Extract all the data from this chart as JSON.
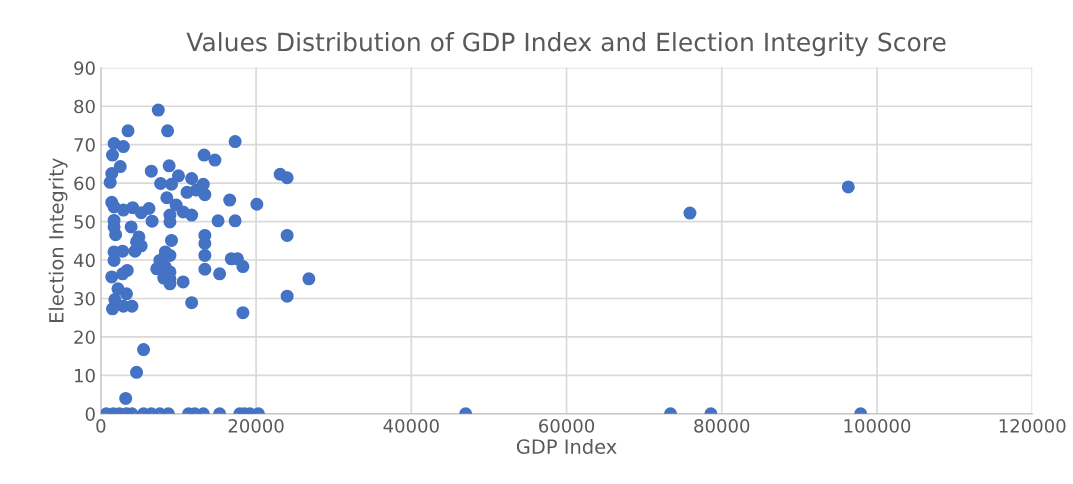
{
  "chart_data": {
    "type": "scatter",
    "title": "Values Distribution of GDP Index and Election Integrity Score",
    "xlabel": "GDP Index",
    "ylabel": "Election Integrity",
    "xlim": [
      0,
      120000
    ],
    "ylim": [
      0,
      90
    ],
    "xticks": [
      0,
      20000,
      40000,
      60000,
      80000,
      100000,
      120000
    ],
    "yticks": [
      0,
      10,
      20,
      30,
      40,
      50,
      60,
      70,
      80,
      90
    ],
    "grid": true,
    "marker": "circle",
    "series": [
      {
        "color": "#4472c4",
        "x": [
          7400,
          3500,
          8600,
          1700,
          2900,
          1500,
          13300,
          2500,
          8800,
          6500,
          1400,
          10000,
          11700,
          1200,
          7700,
          9100,
          13200,
          12300,
          11100,
          13400,
          8500,
          1400,
          1700,
          2900,
          4100,
          5200,
          6200,
          9700,
          10600,
          11700,
          8900,
          8900,
          1700,
          1700,
          6600,
          3900,
          1900,
          4900,
          4600,
          5200,
          13400,
          13400,
          4400,
          9100,
          13400,
          1700,
          2800,
          8300,
          8900,
          1700,
          13400,
          7600,
          7200,
          8300,
          8900,
          3400,
          2800,
          1400,
          8900,
          8100,
          8900,
          10600,
          2200,
          3300,
          1800,
          11700,
          1500,
          2900,
          4000,
          5500,
          4600,
          3200,
          17300,
          14700,
          23100,
          24000,
          16600,
          20100,
          15100,
          17300,
          24000,
          16800,
          17600,
          18300,
          15300,
          26800,
          24000,
          18300,
          75900,
          96300,
          700,
          1600,
          2400,
          3300,
          4000,
          5500,
          6500,
          7600,
          8700,
          11300,
          12100,
          13200,
          15300,
          17900,
          18500,
          19200,
          20300,
          47000,
          73400,
          78600,
          97900
        ],
        "values": [
          79.0,
          73.6,
          73.6,
          70.3,
          69.5,
          67.3,
          67.3,
          64.3,
          64.5,
          63.1,
          62.5,
          61.9,
          61.2,
          60.2,
          59.9,
          59.7,
          59.7,
          58.2,
          57.6,
          57.0,
          56.2,
          55.0,
          53.8,
          53.0,
          53.6,
          52.3,
          53.4,
          54.3,
          52.5,
          51.7,
          51.7,
          49.9,
          50.3,
          48.6,
          50.1,
          48.6,
          46.6,
          46.0,
          44.7,
          43.7,
          46.4,
          44.3,
          42.3,
          45.1,
          41.2,
          42.1,
          42.3,
          42.1,
          41.2,
          39.9,
          37.6,
          39.9,
          37.7,
          38.2,
          36.9,
          37.3,
          36.4,
          35.6,
          35.1,
          35.3,
          33.8,
          34.3,
          32.5,
          31.2,
          29.7,
          28.9,
          27.3,
          28.0,
          28.0,
          16.7,
          10.8,
          4.0,
          70.8,
          66.0,
          62.3,
          61.4,
          55.6,
          54.5,
          50.2,
          50.2,
          46.4,
          40.3,
          40.3,
          38.3,
          36.4,
          35.1,
          30.6,
          26.3,
          52.2,
          59.0,
          0,
          0,
          0,
          0,
          0,
          0,
          0,
          0,
          0,
          0,
          0,
          0,
          0,
          0,
          0,
          0,
          0,
          0,
          0,
          0,
          0
        ]
      }
    ]
  }
}
